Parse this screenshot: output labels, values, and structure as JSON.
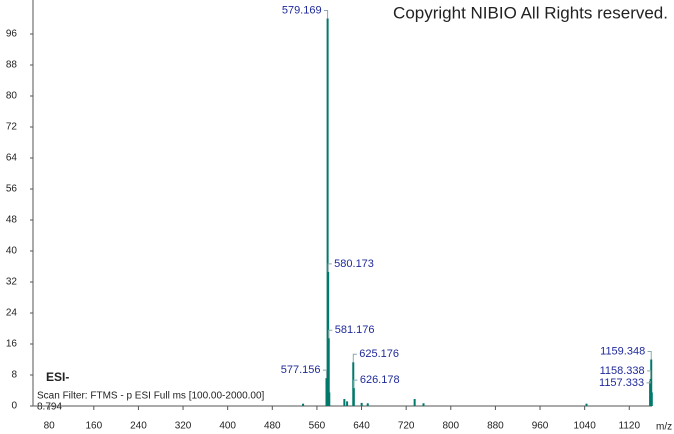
{
  "chart_data": {
    "type": "bar",
    "title": "Copyright NIBIO All Rights reserved.",
    "ion_mode": "ESI-",
    "scan_filter": "Scan Filter: FTMS - p ESI Full ms [100.00-2000.00]",
    "base_peak_intensity": "8.794",
    "x_axis_label": "m/z",
    "color": "#00796b",
    "label_color": "#1f2a9a",
    "x": [
      535.2,
      577.156,
      579.169,
      580.173,
      581.176,
      582.18,
      609.2,
      614.1,
      625.176,
      626.178,
      640.2,
      651.1,
      735.2,
      751.1,
      1043.3,
      1157.333,
      1158.338,
      1159.348,
      1160.35
    ],
    "values": [
      0.6,
      7.2,
      100,
      34.6,
      17.5,
      3.5,
      1.8,
      1.2,
      11.3,
      4.6,
      0.8,
      0.7,
      1.8,
      0.7,
      0.6,
      6.5,
      7,
      12,
      3.5
    ],
    "peak_labels": [
      null,
      "577.156",
      "579.169",
      "580.173",
      "581.176",
      null,
      null,
      null,
      "625.176",
      "626.178",
      null,
      null,
      null,
      null,
      null,
      "1157.333",
      "1158.338",
      "1159.348",
      null
    ],
    "xlim": [
      51,
      1193
    ],
    "xticks": [
      80,
      160,
      240,
      320,
      400,
      480,
      560,
      640,
      720,
      800,
      880,
      960,
      1040,
      1120
    ],
    "ylim": [
      0,
      104
    ],
    "yticks": [
      0,
      8,
      16,
      24,
      32,
      40,
      48,
      56,
      64,
      72,
      80,
      88,
      96
    ]
  }
}
